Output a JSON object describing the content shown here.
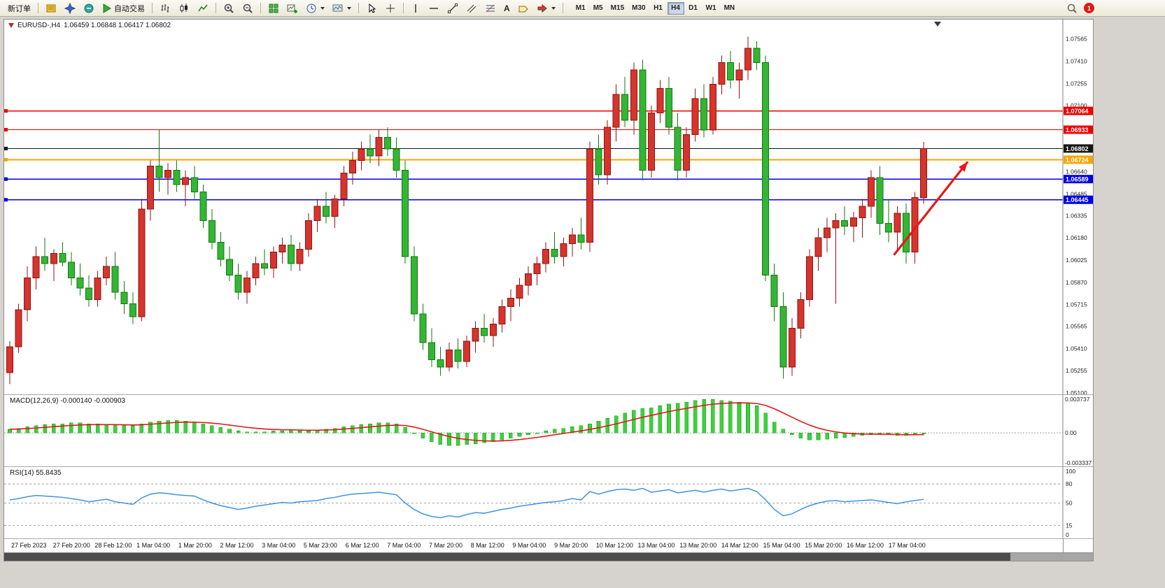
{
  "toolbar": {
    "new_order_label": "新订单",
    "auto_trading_label": "自动交易",
    "text_tool_glyph": "A",
    "timeframes": [
      "M1",
      "M5",
      "M15",
      "M30",
      "H1",
      "H4",
      "D1",
      "W1",
      "MN"
    ],
    "active_timeframe": "H4",
    "notification_count": "1",
    "icon_names": [
      "market-watch-icon",
      "navigator-icon",
      "terminal-icon",
      "play-icon",
      "bar-chart-icon",
      "candlestick-icon",
      "line-chart-icon",
      "zoom-in-icon",
      "zoom-out-icon",
      "tile-windows-icon",
      "new-chart-icon",
      "period-clock-icon",
      "template-icon",
      "cursor-icon",
      "crosshair-icon",
      "vertical-line-icon",
      "horizontal-line-icon",
      "trendline-icon",
      "channel-icon",
      "fibonacci-icon",
      "text-icon",
      "label-icon",
      "shapes-icon",
      "search-icon"
    ]
  },
  "chart_header": {
    "symbol": "EURUSD-,H4",
    "open": "1.06459",
    "high": "1.06848",
    "low": "1.06417",
    "close": "1.06802",
    "ohlc_text": "1.06459 1.06848 1.06417 1.06802"
  },
  "chart_data": {
    "type": "candlestick",
    "symbol": "EURUSD-",
    "timeframe": "H4",
    "ylim": [
      1.051,
      1.0757
    ],
    "grid": false,
    "colors": {
      "bull": "#d6342e",
      "bull_edge": "#8f1510",
      "bear": "#35b535",
      "bear_edge": "#0e7a0e",
      "macd_hist": "#3ecf3e",
      "macd_hist_edge": "#22aa22",
      "macd_signal": "#e01818",
      "rsi_line": "#3f93e0",
      "arrow": "#e81818"
    },
    "candles": [
      [
        1.0524,
        1.0546,
        1.0516,
        1.0542
      ],
      [
        1.0542,
        1.0572,
        1.0538,
        1.0568
      ],
      [
        1.0568,
        1.0598,
        1.056,
        1.059
      ],
      [
        1.059,
        1.0612,
        1.0582,
        1.0605
      ],
      [
        1.0605,
        1.0618,
        1.0595,
        1.06
      ],
      [
        1.06,
        1.061,
        1.0588,
        1.0607
      ],
      [
        1.0607,
        1.0615,
        1.0598,
        1.0601
      ],
      [
        1.0601,
        1.0608,
        1.0585,
        1.059
      ],
      [
        1.059,
        1.06,
        1.0578,
        1.0583
      ],
      [
        1.0583,
        1.0592,
        1.057,
        1.0575
      ],
      [
        1.0575,
        1.0595,
        1.057,
        1.059
      ],
      [
        1.059,
        1.0605,
        1.0585,
        1.0598
      ],
      [
        1.0598,
        1.0608,
        1.0575,
        1.058
      ],
      [
        1.058,
        1.0588,
        1.0565,
        1.0572
      ],
      [
        1.0572,
        1.058,
        1.0558,
        1.0563
      ],
      [
        1.0563,
        1.0645,
        1.056,
        1.0638
      ],
      [
        1.0638,
        1.0672,
        1.063,
        1.0668
      ],
      [
        1.0668,
        1.0693,
        1.065,
        1.066
      ],
      [
        1.066,
        1.067,
        1.0648,
        1.0665
      ],
      [
        1.0665,
        1.0672,
        1.065,
        1.0655
      ],
      [
        1.0655,
        1.0665,
        1.064,
        1.066
      ],
      [
        1.066,
        1.0668,
        1.0645,
        1.065
      ],
      [
        1.065,
        1.0655,
        1.0625,
        1.063
      ],
      [
        1.063,
        1.0638,
        1.061,
        1.0615
      ],
      [
        1.0615,
        1.0622,
        1.0598,
        1.0603
      ],
      [
        1.0603,
        1.0612,
        1.0588,
        1.0592
      ],
      [
        1.0592,
        1.06,
        1.0575,
        1.058
      ],
      [
        1.058,
        1.0595,
        1.0572,
        1.059
      ],
      [
        1.059,
        1.0605,
        1.0585,
        1.06
      ],
      [
        1.06,
        1.061,
        1.0592,
        1.0597
      ],
      [
        1.0597,
        1.0612,
        1.059,
        1.0608
      ],
      [
        1.0608,
        1.0618,
        1.06,
        1.0613
      ],
      [
        1.0613,
        1.062,
        1.0595,
        1.06
      ],
      [
        1.06,
        1.0615,
        1.0595,
        1.061
      ],
      [
        1.061,
        1.0635,
        1.0605,
        1.063
      ],
      [
        1.063,
        1.0645,
        1.0622,
        1.064
      ],
      [
        1.064,
        1.065,
        1.0628,
        1.0633
      ],
      [
        1.0633,
        1.0648,
        1.0625,
        1.0645
      ],
      [
        1.0645,
        1.0668,
        1.064,
        1.0663
      ],
      [
        1.0663,
        1.0678,
        1.0655,
        1.0672
      ],
      [
        1.0672,
        1.0685,
        1.0665,
        1.068
      ],
      [
        1.068,
        1.069,
        1.067,
        1.0675
      ],
      [
        1.0675,
        1.0693,
        1.0668,
        1.0688
      ],
      [
        1.0688,
        1.0695,
        1.0675,
        1.068
      ],
      [
        1.068,
        1.0688,
        1.066,
        1.0665
      ],
      [
        1.0665,
        1.0672,
        1.06,
        1.0605
      ],
      [
        1.0605,
        1.0612,
        1.056,
        1.0565
      ],
      [
        1.0565,
        1.0572,
        1.054,
        1.0545
      ],
      [
        1.0545,
        1.0555,
        1.0528,
        1.0533
      ],
      [
        1.0533,
        1.0542,
        1.0522,
        1.0528
      ],
      [
        1.0528,
        1.0545,
        1.0525,
        1.054
      ],
      [
        1.054,
        1.0548,
        1.0527,
        1.0532
      ],
      [
        1.0532,
        1.055,
        1.0528,
        1.0546
      ],
      [
        1.0546,
        1.056,
        1.0538,
        1.0555
      ],
      [
        1.0555,
        1.0565,
        1.0545,
        1.055
      ],
      [
        1.055,
        1.0562,
        1.0542,
        1.0558
      ],
      [
        1.0558,
        1.0575,
        1.0552,
        1.057
      ],
      [
        1.057,
        1.0582,
        1.056,
        1.0576
      ],
      [
        1.0576,
        1.059,
        1.057,
        1.0585
      ],
      [
        1.0585,
        1.0598,
        1.0578,
        1.0593
      ],
      [
        1.0593,
        1.0605,
        1.0585,
        1.06
      ],
      [
        1.06,
        1.0615,
        1.0594,
        1.061
      ],
      [
        1.061,
        1.0622,
        1.06,
        1.0605
      ],
      [
        1.0605,
        1.0618,
        1.0598,
        1.0614
      ],
      [
        1.0614,
        1.0625,
        1.0605,
        1.062
      ],
      [
        1.062,
        1.0632,
        1.061,
        1.0615
      ],
      [
        1.0615,
        1.0685,
        1.0608,
        1.068
      ],
      [
        1.068,
        1.069,
        1.0655,
        1.0662
      ],
      [
        1.0662,
        1.07,
        1.0655,
        1.0695
      ],
      [
        1.0695,
        1.0725,
        1.0685,
        1.0718
      ],
      [
        1.0718,
        1.073,
        1.0695,
        1.07
      ],
      [
        1.07,
        1.074,
        1.069,
        1.0735
      ],
      [
        1.0735,
        1.0742,
        1.0658,
        1.0665
      ],
      [
        1.0665,
        1.071,
        1.066,
        1.0705
      ],
      [
        1.0705,
        1.0728,
        1.0698,
        1.0722
      ],
      [
        1.0722,
        1.073,
        1.069,
        1.0695
      ],
      [
        1.0695,
        1.0705,
        1.0658,
        1.0665
      ],
      [
        1.0665,
        1.0695,
        1.066,
        1.069
      ],
      [
        1.069,
        1.0722,
        1.0685,
        1.0715
      ],
      [
        1.0715,
        1.0725,
        1.0688,
        1.0693
      ],
      [
        1.0693,
        1.073,
        1.069,
        1.0725
      ],
      [
        1.0725,
        1.0745,
        1.0718,
        1.074
      ],
      [
        1.074,
        1.0748,
        1.0722,
        1.0728
      ],
      [
        1.0728,
        1.074,
        1.0715,
        1.0735
      ],
      [
        1.0735,
        1.0758,
        1.0728,
        1.075
      ],
      [
        1.075,
        1.0755,
        1.0735,
        1.074
      ],
      [
        1.074,
        1.0745,
        1.0588,
        1.0592
      ],
      [
        1.0592,
        1.06,
        1.056,
        1.057
      ],
      [
        1.057,
        1.058,
        1.052,
        1.0528
      ],
      [
        1.0528,
        1.0562,
        1.0522,
        1.0555
      ],
      [
        1.0555,
        1.058,
        1.0548,
        1.0575
      ],
      [
        1.0575,
        1.061,
        1.057,
        1.0605
      ],
      [
        1.0605,
        1.0625,
        1.0595,
        1.0618
      ],
      [
        1.0618,
        1.0632,
        1.0608,
        1.0625
      ],
      [
        1.0625,
        1.0635,
        1.0572,
        1.063
      ],
      [
        1.063,
        1.064,
        1.062,
        1.0626
      ],
      [
        1.0626,
        1.0636,
        1.0615,
        1.0632
      ],
      [
        1.0632,
        1.0645,
        1.0618,
        1.064
      ],
      [
        1.064,
        1.0665,
        1.0632,
        1.066
      ],
      [
        1.066,
        1.0668,
        1.062,
        1.0628
      ],
      [
        1.0628,
        1.0645,
        1.0615,
        1.0622
      ],
      [
        1.0622,
        1.064,
        1.061,
        1.0635
      ],
      [
        1.0635,
        1.0642,
        1.06,
        1.0608
      ],
      [
        1.0608,
        1.065,
        1.06,
        1.0646
      ],
      [
        1.06459,
        1.06848,
        1.06417,
        1.06802
      ]
    ],
    "horizontal_lines": [
      {
        "price": 1.07064,
        "label": "1.07064",
        "color": "#ee0000",
        "width": 1.4
      },
      {
        "price": 1.06933,
        "label": "1.06933",
        "color": "#ee0000",
        "width": 1.4
      },
      {
        "price": 1.06802,
        "label": "1.06802",
        "color": "#161616",
        "width": 1
      },
      {
        "price": 1.06724,
        "label": "1.06724",
        "color": "#f7a600",
        "width": 2
      },
      {
        "price": 1.06589,
        "label": "1.06589",
        "color": "#0000e0",
        "width": 1.6
      },
      {
        "price": 1.06445,
        "label": "1.06445",
        "color": "#0000e0",
        "width": 1.6
      }
    ],
    "price_axis_labels": [
      "1.07565",
      "1.07410",
      "1.07255",
      "1.07100",
      "1.06945",
      "1.06640",
      "1.06485",
      "1.06335",
      "1.06180",
      "1.06025",
      "1.05870",
      "1.05715",
      "1.05565",
      "1.05410",
      "1.05255",
      "1.05100"
    ],
    "time_labels": [
      "27 Feb 2023",
      "27 Feb 20:00",
      "28 Feb 12:00",
      "1 Mar 04:00",
      "1 Mar 20:00",
      "2 Mar 12:00",
      "3 Mar 04:00",
      "5 Mar 23:00",
      "6 Mar 12:00",
      "7 Mar 04:00",
      "7 Mar 20:00",
      "8 Mar 12:00",
      "9 Mar 04:00",
      "9 Mar 20:00",
      "10 Mar 12:00",
      "13 Mar 04:00",
      "13 Mar 20:00",
      "14 Mar 12:00",
      "15 Mar 04:00",
      "15 Mar 20:00",
      "16 Mar 12:00",
      "17 Mar 04:00"
    ],
    "annotation_arrow": {
      "from_bar": 100.6,
      "from_price": 1.0606,
      "to_bar": 109,
      "to_price": 1.0671,
      "color": "#e81818"
    },
    "macd": {
      "label": "MACD(12,26,9) -0.000140 -0.000903",
      "params": [
        12,
        26,
        9
      ],
      "main_value": -0.00014,
      "signal_value": -0.000903,
      "axis_labels": [
        "0.003737",
        "0.00",
        "-0.003337"
      ],
      "axis_max": 0.003737,
      "axis_min": -0.003337,
      "histogram": [
        0.0004,
        0.0005,
        0.0007,
        0.0008,
        0.0009,
        0.001,
        0.001,
        0.0011,
        0.0011,
        0.001,
        0.001,
        0.0009,
        0.0009,
        0.0008,
        0.0008,
        0.001,
        0.0012,
        0.0013,
        0.0014,
        0.0014,
        0.0013,
        0.0012,
        0.001,
        0.0008,
        0.0006,
        0.0004,
        0.0002,
        0.0001,
        0.0001,
        0.0001,
        0.0002,
        0.0002,
        0.0003,
        0.0002,
        0.0002,
        0.0003,
        0.0004,
        0.0005,
        0.0007,
        0.0008,
        0.0009,
        0.001,
        0.0011,
        0.0011,
        0.001,
        0.0006,
        0,
        -0.0006,
        -0.001,
        -0.0013,
        -0.0014,
        -0.0014,
        -0.0013,
        -0.0012,
        -0.0011,
        -0.001,
        -0.0008,
        -0.0006,
        -0.0004,
        -0.0002,
        0,
        0.0002,
        0.0004,
        0.0005,
        0.0007,
        0.0008,
        0.001,
        0.0013,
        0.0016,
        0.0019,
        0.0022,
        0.0025,
        0.0027,
        0.0028,
        0.003,
        0.0032,
        0.0033,
        0.0034,
        0.0036,
        0.0037,
        0.0037,
        0.0036,
        0.0035,
        0.0034,
        0.0033,
        0.003,
        0.0022,
        0.0012,
        0.0004,
        -0.0002,
        -0.0006,
        -0.0008,
        -0.0008,
        -0.0007,
        -0.0006,
        -0.0005,
        -0.0004,
        -0.0003,
        -0.0002,
        -0.0002,
        -0.0002,
        -0.0003,
        -0.0003,
        -0.0002,
        -0.00014
      ]
    },
    "rsi": {
      "label": "RSI(14) 55.8435",
      "period": 14,
      "value": 55.8435,
      "levels": [
        80,
        50,
        15
      ],
      "axis_labels": [
        "100",
        "80",
        "50",
        "15",
        "0"
      ],
      "values": [
        55,
        57,
        60,
        62,
        61,
        60,
        59,
        57,
        55,
        52,
        54,
        56,
        52,
        50,
        48,
        58,
        64,
        66,
        65,
        63,
        62,
        61,
        55,
        50,
        46,
        43,
        40,
        42,
        45,
        47,
        49,
        51,
        50,
        52,
        53,
        54,
        57,
        59,
        62,
        64,
        65,
        66,
        67,
        65,
        63,
        50,
        40,
        33,
        29,
        27,
        30,
        28,
        32,
        35,
        34,
        37,
        40,
        42,
        45,
        47,
        49,
        51,
        52,
        54,
        57,
        55,
        68,
        64,
        68,
        71,
        72,
        70,
        73,
        67,
        69,
        71,
        66,
        68,
        70,
        67,
        70,
        72,
        69,
        71,
        73,
        68,
        55,
        40,
        30,
        33,
        40,
        46,
        50,
        53,
        54,
        52,
        53,
        54,
        55,
        53,
        51,
        49,
        52,
        54,
        55.84
      ]
    }
  }
}
